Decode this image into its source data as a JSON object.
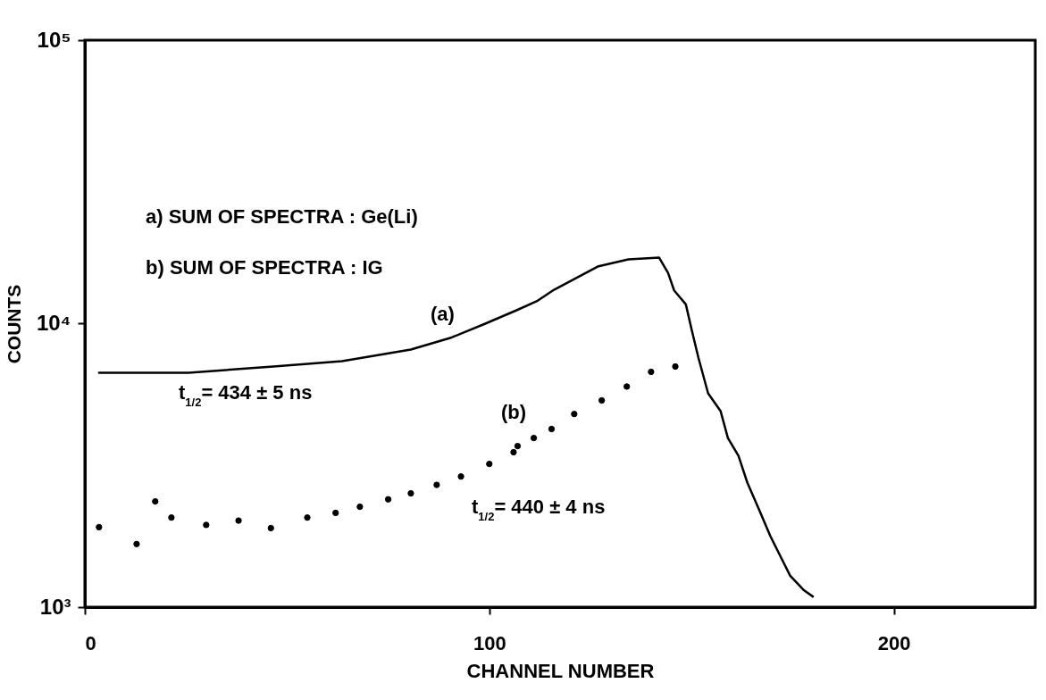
{
  "chart_data": {
    "type": "line",
    "xlabel": "CHANNEL NUMBER",
    "ylabel": "COUNTS",
    "log": true,
    "xlim": [
      0,
      235
    ],
    "xticks": [
      0,
      100,
      200
    ],
    "ylim": [
      1000,
      100000
    ],
    "yticks": [
      {
        "value": 1000,
        "label": "10³"
      },
      {
        "value": 10000,
        "label": "10⁴"
      },
      {
        "value": 100000,
        "label": "10⁵"
      }
    ],
    "grid": false,
    "series": [
      {
        "color": "#000000",
        "line_style": "solid",
        "x": [
          3.5,
          25.6,
          46.6,
          63.6,
          80.6,
          90.7,
          99,
          107,
          111.7,
          116,
          127,
          134.4,
          142,
          144.2,
          145.7,
          148.6,
          150.1,
          151.7,
          154.1,
          157.2,
          159,
          161.6,
          163.8,
          166.7,
          169.5,
          172.2,
          174.4,
          177.7,
          180
        ],
        "values": [
          6710,
          6710,
          7060,
          7370,
          8100,
          8940,
          10000,
          11190,
          11990,
          13170,
          15940,
          16860,
          17100,
          15100,
          13100,
          11700,
          9440,
          7590,
          5680,
          4910,
          3950,
          3420,
          2750,
          2210,
          1780,
          1490,
          1290,
          1150,
          1090
        ]
      },
      {
        "type": "scatter",
        "color": "#000000",
        "marker": "circle",
        "x": [
          3.5,
          12.8,
          17.4,
          21.4,
          30,
          38,
          46,
          55,
          62,
          68,
          75,
          80.6,
          87,
          93,
          100,
          106,
          107,
          111,
          115.4,
          121,
          127.8,
          134,
          140,
          146
        ],
        "values": [
          1915,
          1670,
          2360,
          2070,
          1950,
          2020,
          1900,
          2070,
          2150,
          2260,
          2400,
          2520,
          2700,
          2890,
          3200,
          3520,
          3700,
          3950,
          4250,
          4800,
          5360,
          6000,
          6760,
          7060
        ]
      }
    ],
    "annotations": [
      "a) SUM OF SPECTRA : Ge(Li)",
      "b) SUM OF SPECTRA : IG",
      "(a)",
      "(b)",
      "t$_{1/2}$= 434 ± 5 ns",
      "t$_{1/2}$= 440 ± 4 ns"
    ]
  }
}
